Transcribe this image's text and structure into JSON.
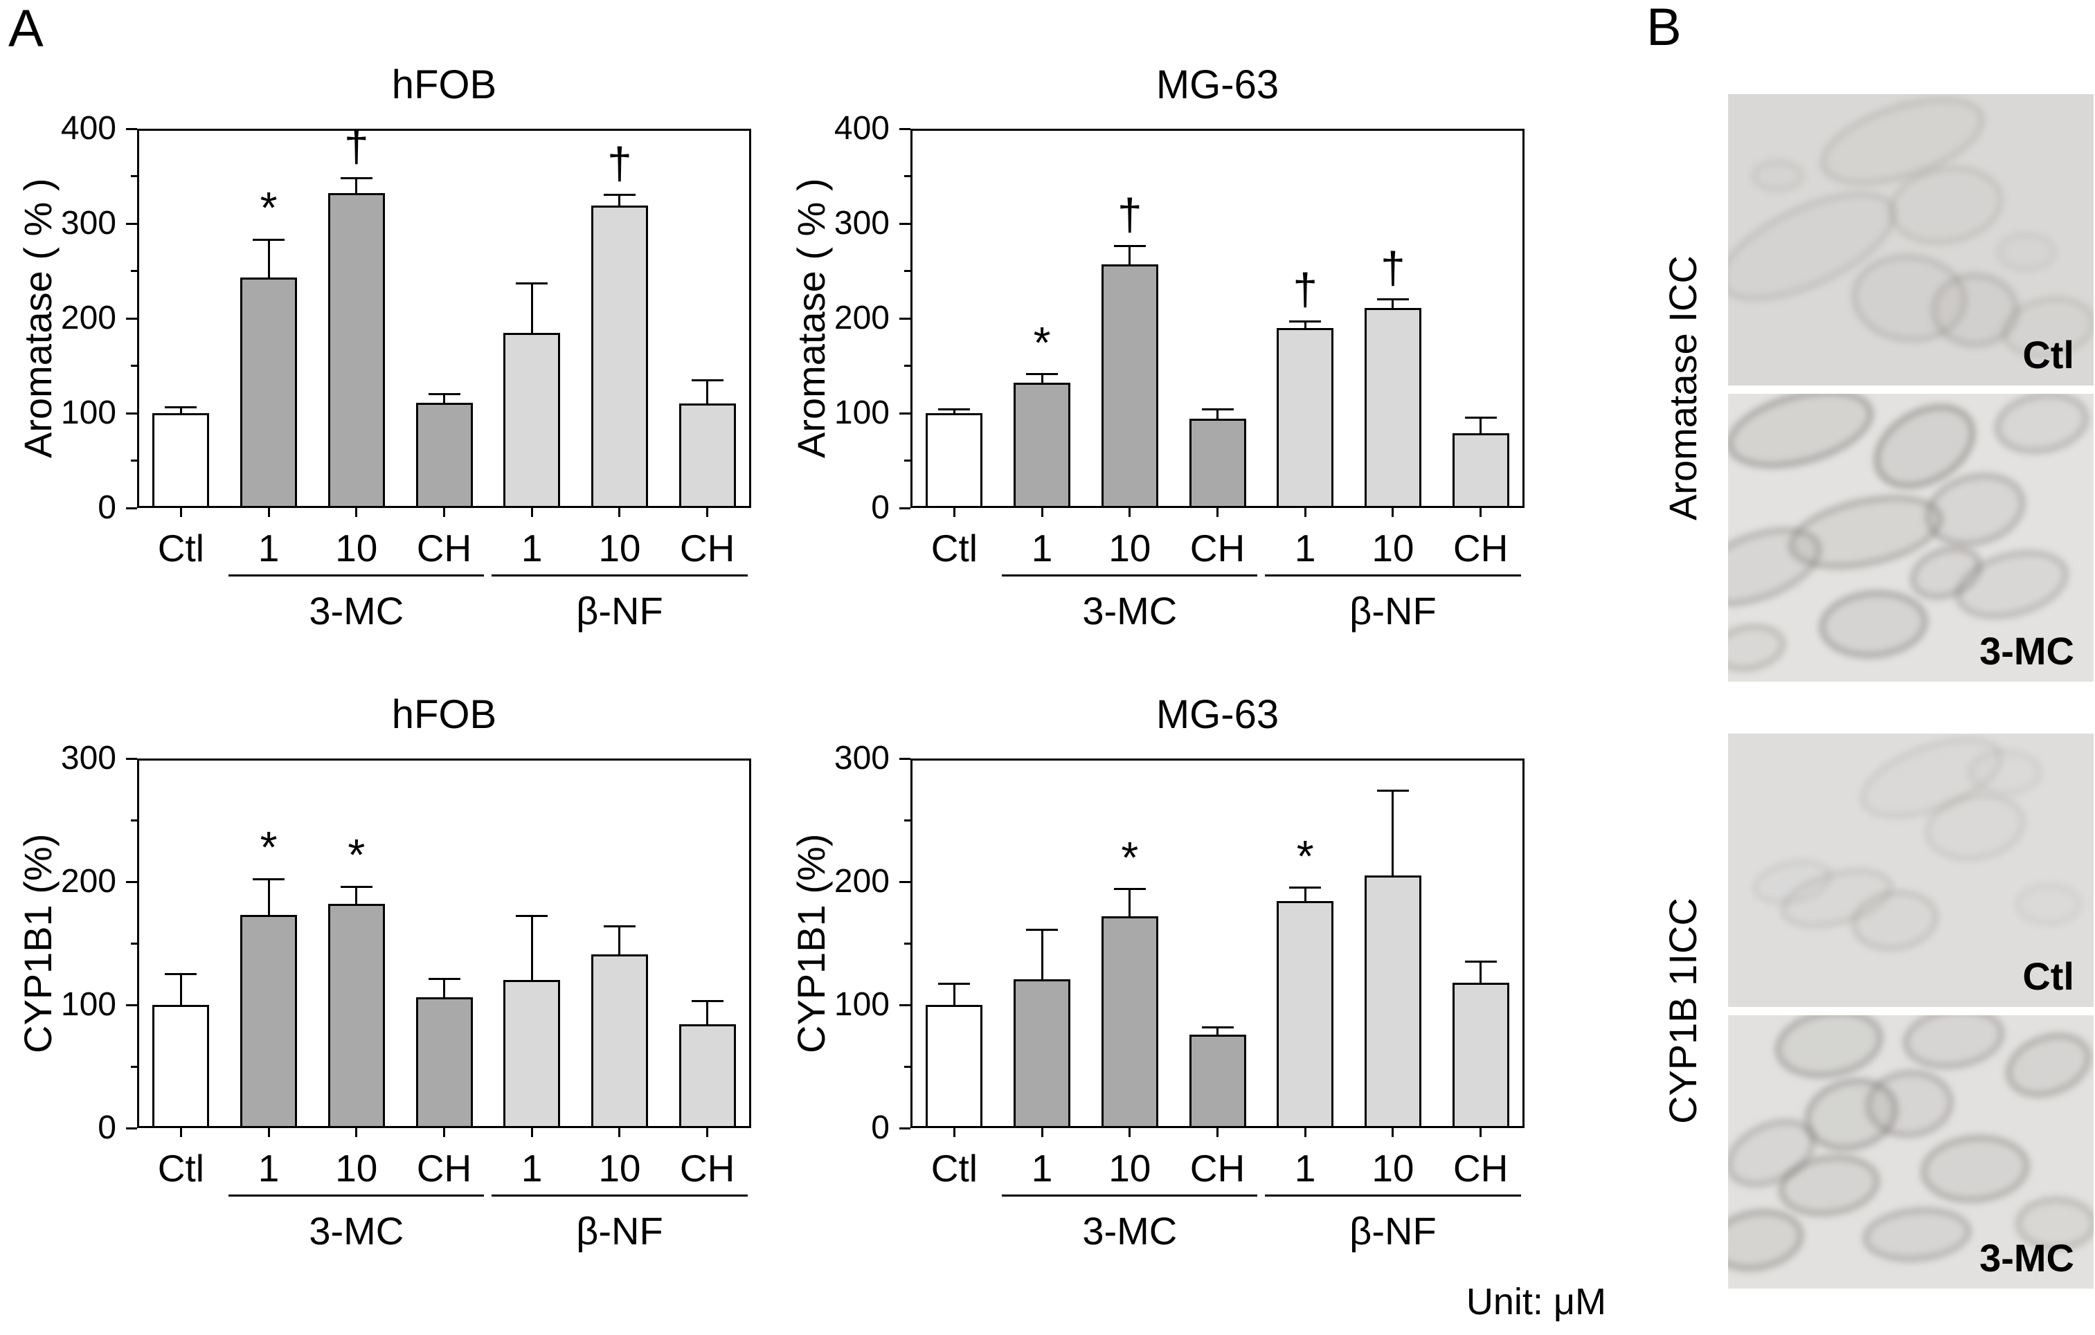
{
  "page": {
    "panel_a_label": "A",
    "panel_b_label": "B",
    "unit_note": "Unit: μM"
  },
  "colors": {
    "ctl_bar": "#ffffff",
    "mc_bar": "#a9a9a9",
    "nf_bar": "#d9d9d9",
    "axis": "#000000"
  },
  "chart_data": [
    {
      "type": "bar",
      "title": "hFOB",
      "ylabel": "Aromatase ( % )",
      "ylim": [
        0,
        400
      ],
      "yticks": [
        0,
        100,
        200,
        300,
        400
      ],
      "minor_tick_step": 50,
      "grid": false,
      "categories": [
        "Ctl",
        "1",
        "10",
        "CH",
        "1",
        "10",
        "CH"
      ],
      "values": [
        100,
        243,
        332,
        111,
        185,
        319,
        110
      ],
      "errors": [
        6,
        40,
        16,
        9,
        52,
        11,
        25
      ],
      "sig": [
        "",
        "*",
        "†",
        "",
        "",
        "†",
        ""
      ],
      "bar_colors": [
        "ctl",
        "mc",
        "mc",
        "mc",
        "nf",
        "nf",
        "nf"
      ],
      "groups": [
        {
          "label": "3-MC",
          "from": 1,
          "to": 3
        },
        {
          "label": "β-NF",
          "from": 4,
          "to": 6
        }
      ]
    },
    {
      "type": "bar",
      "title": "MG-63",
      "ylabel": "Aromatase ( % )",
      "ylim": [
        0,
        400
      ],
      "yticks": [
        0,
        100,
        200,
        300,
        400
      ],
      "minor_tick_step": 50,
      "grid": false,
      "categories": [
        "Ctl",
        "1",
        "10",
        "CH",
        "1",
        "10",
        "CH"
      ],
      "values": [
        100,
        132,
        257,
        94,
        190,
        211,
        79
      ],
      "errors": [
        4,
        9,
        19,
        10,
        7,
        9,
        16
      ],
      "sig": [
        "",
        "*",
        "†",
        "",
        "†",
        "†",
        ""
      ],
      "bar_colors": [
        "ctl",
        "mc",
        "mc",
        "mc",
        "nf",
        "nf",
        "nf"
      ],
      "groups": [
        {
          "label": "3-MC",
          "from": 1,
          "to": 3
        },
        {
          "label": "β-NF",
          "from": 4,
          "to": 6
        }
      ]
    },
    {
      "type": "bar",
      "title": "hFOB",
      "ylabel": "CYP1B1 (%)",
      "ylim": [
        0,
        300
      ],
      "yticks": [
        0,
        100,
        200,
        300
      ],
      "minor_tick_step": 50,
      "grid": false,
      "categories": [
        "Ctl",
        "1",
        "10",
        "CH",
        "1",
        "10",
        "CH"
      ],
      "values": [
        100,
        173,
        182,
        106,
        120,
        141,
        84
      ],
      "errors": [
        25,
        29,
        14,
        15,
        52,
        23,
        19
      ],
      "sig": [
        "",
        "*",
        "*",
        "",
        "",
        "",
        ""
      ],
      "bar_colors": [
        "ctl",
        "mc",
        "mc",
        "mc",
        "nf",
        "nf",
        "nf"
      ],
      "groups": [
        {
          "label": "3-MC",
          "from": 1,
          "to": 3
        },
        {
          "label": "β-NF",
          "from": 4,
          "to": 6
        }
      ]
    },
    {
      "type": "bar",
      "title": "MG-63",
      "ylabel": "CYP1B1 (%)",
      "ylim": [
        0,
        300
      ],
      "yticks": [
        0,
        100,
        200,
        300
      ],
      "minor_tick_step": 50,
      "grid": false,
      "categories": [
        "Ctl",
        "1",
        "10",
        "CH",
        "1",
        "10",
        "CH"
      ],
      "values": [
        100,
        121,
        172,
        76,
        184,
        205,
        118
      ],
      "errors": [
        17,
        40,
        22,
        6,
        11,
        69,
        17
      ],
      "sig": [
        "",
        "",
        "*",
        "",
        "*",
        "",
        ""
      ],
      "bar_colors": [
        "ctl",
        "mc",
        "mc",
        "mc",
        "nf",
        "nf",
        "nf"
      ],
      "groups": [
        {
          "label": "3-MC",
          "from": 1,
          "to": 3
        },
        {
          "label": "β-NF",
          "from": 4,
          "to": 6
        }
      ]
    }
  ],
  "panel_b": {
    "rows": [
      {
        "row_label": "Aromatase ICC",
        "images": [
          {
            "label": "Ctl"
          },
          {
            "label": "3-MC"
          }
        ]
      },
      {
        "row_label": "CYP1B 1ICC",
        "images": [
          {
            "label": "Ctl"
          },
          {
            "label": "3-MC"
          }
        ]
      }
    ]
  }
}
